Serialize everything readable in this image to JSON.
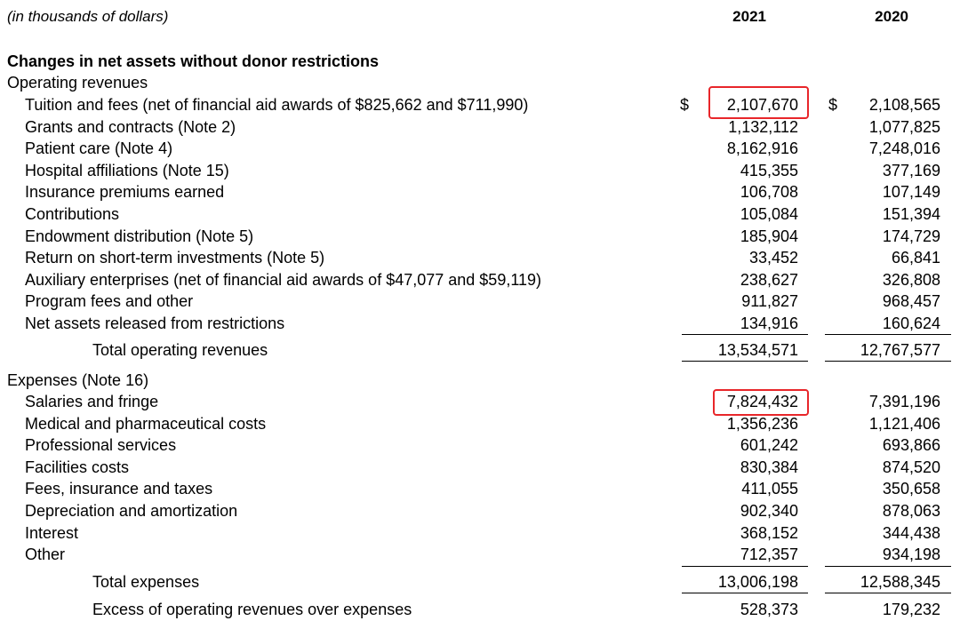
{
  "header": {
    "units": "(in thousands of dollars)",
    "col_2021": "2021",
    "col_2020": "2020"
  },
  "section_title": "Changes in net assets without donor restrictions",
  "operating": {
    "label": "Operating revenues",
    "currency_2021": "$",
    "currency_2020": "$",
    "rows": [
      {
        "label": "Tuition and fees (net of financial aid awards of $825,662 and $711,990)",
        "v2021": "2,107,670",
        "v2020": "2,108,565"
      },
      {
        "label": "Grants and contracts (Note 2)",
        "v2021": "1,132,112",
        "v2020": "1,077,825"
      },
      {
        "label": "Patient care (Note 4)",
        "v2021": "8,162,916",
        "v2020": "7,248,016"
      },
      {
        "label": "Hospital affiliations (Note 15)",
        "v2021": "415,355",
        "v2020": "377,169"
      },
      {
        "label": "Insurance premiums earned",
        "v2021": "106,708",
        "v2020": "107,149"
      },
      {
        "label": "Contributions",
        "v2021": "105,084",
        "v2020": "151,394"
      },
      {
        "label": "Endowment distribution (Note 5)",
        "v2021": "185,904",
        "v2020": "174,729"
      },
      {
        "label": "Return on short-term investments (Note 5)",
        "v2021": "33,452",
        "v2020": "66,841"
      },
      {
        "label": "Auxiliary enterprises (net of financial aid awards of $47,077 and $59,119)",
        "v2021": "238,627",
        "v2020": "326,808"
      },
      {
        "label": "Program fees and other",
        "v2021": "911,827",
        "v2020": "968,457"
      },
      {
        "label": "Net assets released from restrictions",
        "v2021": "134,916",
        "v2020": "160,624"
      }
    ],
    "total": {
      "label": "Total operating revenues",
      "v2021": "13,534,571",
      "v2020": "12,767,577"
    }
  },
  "expenses": {
    "label": "Expenses (Note 16)",
    "rows": [
      {
        "label": "Salaries and fringe",
        "v2021": "7,824,432",
        "v2020": "7,391,196"
      },
      {
        "label": "Medical and pharmaceutical costs",
        "v2021": "1,356,236",
        "v2020": "1,121,406"
      },
      {
        "label": "Professional services",
        "v2021": "601,242",
        "v2020": "693,866"
      },
      {
        "label": "Facilities costs",
        "v2021": "830,384",
        "v2020": "874,520"
      },
      {
        "label": "Fees, insurance and taxes",
        "v2021": "411,055",
        "v2020": "350,658"
      },
      {
        "label": "Depreciation and amortization",
        "v2021": "902,340",
        "v2020": "878,063"
      },
      {
        "label": "Interest",
        "v2021": "368,152",
        "v2020": "344,438"
      },
      {
        "label": "Other",
        "v2021": "712,357",
        "v2020": "934,198"
      }
    ],
    "total": {
      "label": "Total expenses",
      "v2021": "13,006,198",
      "v2020": "12,588,345"
    }
  },
  "excess": {
    "label": "Excess of operating revenues over expenses",
    "v2021": "528,373",
    "v2020": "179,232"
  },
  "highlight_color": "#e8262a"
}
